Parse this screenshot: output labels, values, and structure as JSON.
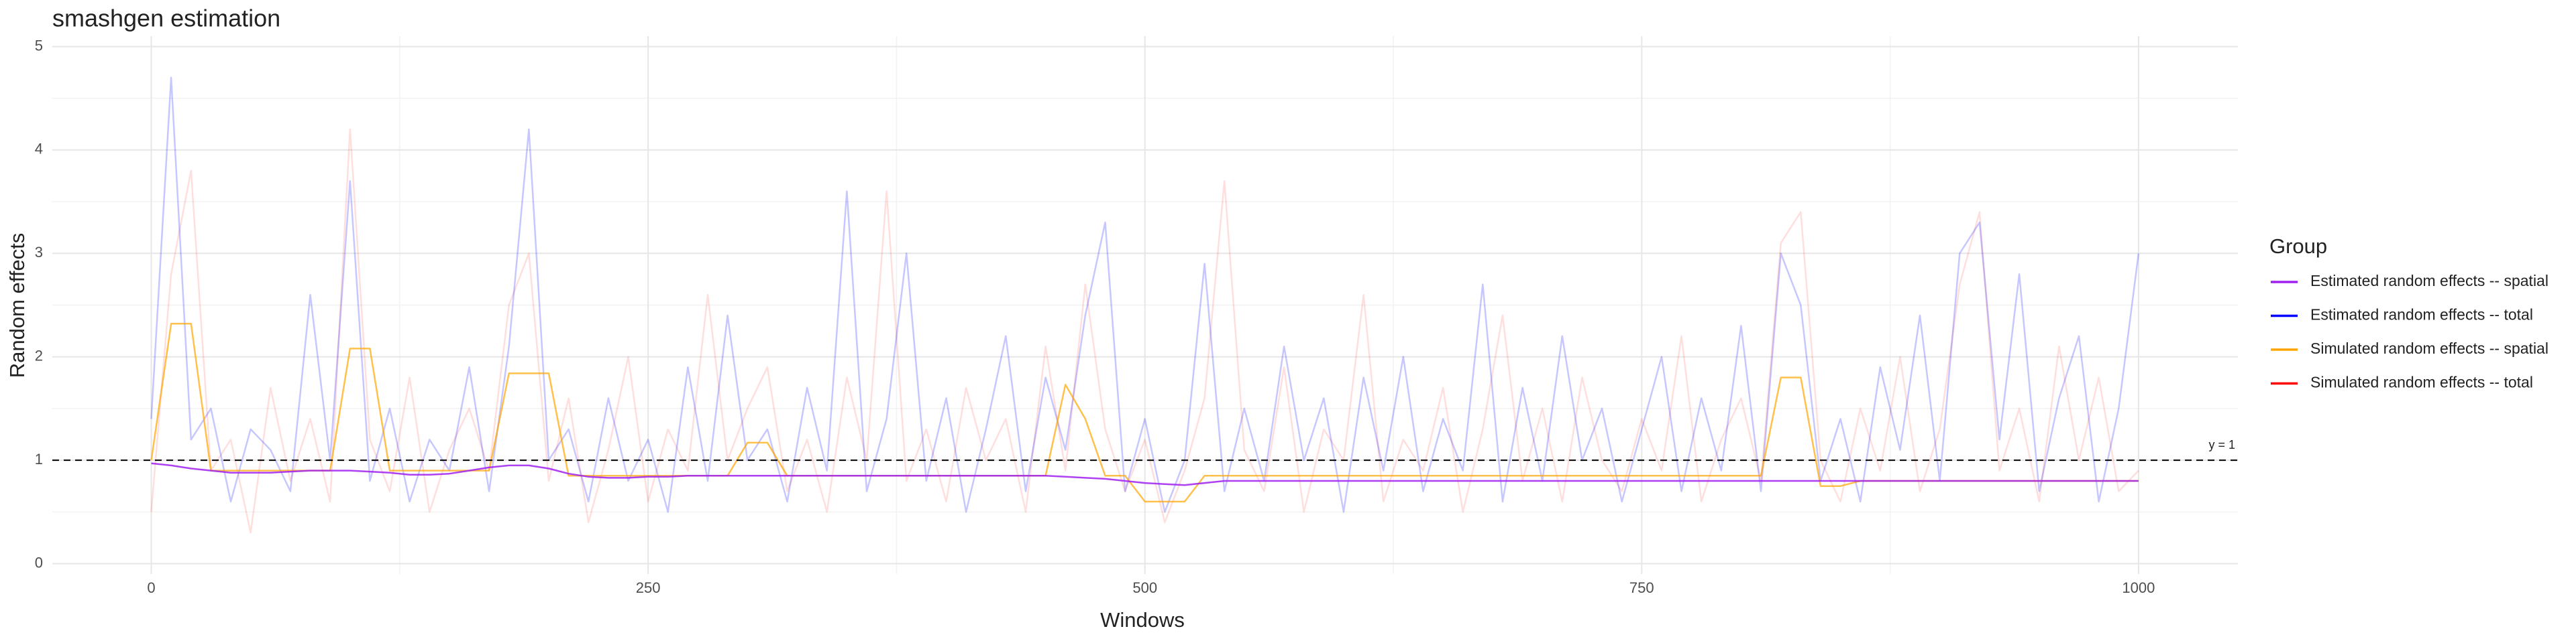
{
  "chart_data": {
    "type": "line",
    "title": "smashgen estimation",
    "x_label": "Windows",
    "y_label": "Random effects",
    "legend_title": "Group",
    "legend_position": "right",
    "grid": true,
    "xlim": [
      -49.8,
      1050
    ],
    "ylim": [
      -0.1,
      5.1
    ],
    "xticks": [
      0,
      250,
      500,
      750,
      1000
    ],
    "yticks": [
      0,
      1,
      2,
      3,
      4,
      5
    ],
    "hline": {
      "value": 1,
      "label": "y = 1"
    },
    "x": [
      0,
      10,
      20,
      30,
      40,
      50,
      60,
      70,
      80,
      90,
      100,
      110,
      120,
      130,
      140,
      150,
      160,
      170,
      180,
      190,
      200,
      210,
      220,
      230,
      240,
      250,
      260,
      270,
      280,
      290,
      300,
      310,
      320,
      330,
      340,
      350,
      360,
      370,
      380,
      390,
      400,
      410,
      420,
      430,
      440,
      450,
      460,
      470,
      480,
      490,
      500,
      510,
      520,
      530,
      540,
      550,
      560,
      570,
      580,
      590,
      600,
      610,
      620,
      630,
      640,
      650,
      660,
      670,
      680,
      690,
      700,
      710,
      720,
      730,
      740,
      750,
      760,
      770,
      780,
      790,
      800,
      810,
      820,
      830,
      840,
      850,
      860,
      870,
      880,
      890,
      900,
      910,
      920,
      930,
      940,
      950,
      960,
      970,
      980,
      990,
      1000
    ],
    "series": [
      {
        "name": "Simulated random effects -- total",
        "color": "#ff0000",
        "opacity": 0.13,
        "values": [
          0.5,
          2.8,
          3.8,
          0.9,
          1.2,
          0.3,
          1.7,
          0.8,
          1.4,
          0.6,
          4.2,
          1.2,
          0.7,
          1.8,
          0.5,
          1.1,
          1.5,
          0.9,
          2.5,
          3.0,
          0.8,
          1.6,
          0.4,
          1.1,
          2.0,
          0.6,
          1.3,
          0.9,
          2.6,
          1.0,
          1.5,
          1.9,
          0.7,
          1.2,
          0.5,
          1.8,
          1.0,
          3.6,
          0.8,
          1.3,
          0.6,
          1.7,
          1.0,
          1.4,
          0.5,
          2.1,
          0.9,
          2.7,
          1.3,
          0.7,
          1.2,
          0.4,
          0.9,
          1.6,
          3.7,
          1.1,
          0.7,
          1.9,
          0.5,
          1.3,
          1.0,
          2.6,
          0.6,
          1.2,
          0.9,
          1.7,
          0.5,
          1.3,
          2.4,
          0.8,
          1.5,
          0.6,
          1.8,
          1.0,
          0.7,
          1.4,
          0.9,
          2.2,
          0.6,
          1.2,
          1.6,
          0.8,
          3.1,
          3.4,
          1.0,
          0.6,
          1.5,
          0.9,
          2.0,
          0.7,
          1.3,
          2.7,
          3.4,
          0.9,
          1.5,
          0.6,
          2.1,
          1.0,
          1.8,
          0.7,
          0.9
        ]
      },
      {
        "name": "Estimated random effects -- total",
        "color": "#0000ff",
        "opacity": 0.22,
        "values": [
          1.4,
          4.7,
          1.2,
          1.5,
          0.6,
          1.3,
          1.1,
          0.7,
          2.6,
          1.0,
          3.7,
          0.8,
          1.5,
          0.6,
          1.2,
          0.9,
          1.9,
          0.7,
          2.1,
          4.2,
          1.0,
          1.3,
          0.6,
          1.6,
          0.8,
          1.2,
          0.5,
          1.9,
          0.8,
          2.4,
          1.0,
          1.3,
          0.6,
          1.7,
          0.9,
          3.6,
          0.7,
          1.4,
          3.0,
          0.8,
          1.6,
          0.5,
          1.3,
          2.2,
          0.7,
          1.8,
          1.1,
          2.4,
          3.3,
          0.7,
          1.4,
          0.5,
          1.0,
          2.9,
          0.7,
          1.5,
          0.8,
          2.1,
          1.0,
          1.6,
          0.5,
          1.8,
          0.9,
          2.0,
          0.7,
          1.4,
          0.9,
          2.7,
          0.6,
          1.7,
          0.8,
          2.2,
          1.0,
          1.5,
          0.6,
          1.3,
          2.0,
          0.7,
          1.6,
          0.9,
          2.3,
          0.7,
          3.0,
          2.5,
          0.8,
          1.4,
          0.6,
          1.9,
          1.1,
          2.4,
          0.8,
          3.0,
          3.3,
          1.2,
          2.8,
          0.7,
          1.6,
          2.2,
          0.6,
          1.5,
          3.0
        ]
      },
      {
        "name": "Simulated random effects -- spatial",
        "color": "#ffa500",
        "opacity": 0.7,
        "values": [
          1.0,
          2.32,
          2.32,
          0.9,
          0.9,
          0.9,
          0.9,
          0.9,
          0.9,
          0.9,
          2.08,
          2.08,
          0.9,
          0.9,
          0.9,
          0.9,
          0.9,
          0.9,
          1.84,
          1.84,
          1.84,
          0.85,
          0.85,
          0.85,
          0.85,
          0.85,
          0.85,
          0.85,
          0.85,
          0.85,
          1.17,
          1.17,
          0.85,
          0.85,
          0.85,
          0.85,
          0.85,
          0.85,
          0.85,
          0.85,
          0.85,
          0.85,
          0.85,
          0.85,
          0.85,
          0.85,
          1.73,
          1.4,
          0.85,
          0.85,
          0.6,
          0.6,
          0.6,
          0.85,
          0.85,
          0.85,
          0.85,
          0.85,
          0.85,
          0.85,
          0.85,
          0.85,
          0.85,
          0.85,
          0.85,
          0.85,
          0.85,
          0.85,
          0.85,
          0.85,
          0.85,
          0.85,
          0.85,
          0.85,
          0.85,
          0.85,
          0.85,
          0.85,
          0.85,
          0.85,
          0.85,
          0.85,
          1.8,
          1.8,
          0.75,
          0.75,
          0.8,
          0.8,
          0.8,
          0.8,
          0.8,
          0.8,
          0.8,
          0.8,
          0.8,
          0.8,
          0.8,
          0.8,
          0.8,
          0.8,
          0.8
        ]
      },
      {
        "name": "Estimated random effects -- spatial",
        "color": "#a020f0",
        "opacity": 0.85,
        "values": [
          0.97,
          0.95,
          0.92,
          0.9,
          0.88,
          0.88,
          0.88,
          0.89,
          0.9,
          0.9,
          0.9,
          0.89,
          0.88,
          0.86,
          0.86,
          0.87,
          0.9,
          0.93,
          0.95,
          0.95,
          0.92,
          0.87,
          0.84,
          0.83,
          0.83,
          0.84,
          0.84,
          0.85,
          0.85,
          0.85,
          0.85,
          0.85,
          0.85,
          0.85,
          0.85,
          0.85,
          0.85,
          0.85,
          0.85,
          0.85,
          0.85,
          0.85,
          0.85,
          0.85,
          0.85,
          0.85,
          0.84,
          0.83,
          0.82,
          0.8,
          0.78,
          0.77,
          0.76,
          0.78,
          0.8,
          0.8,
          0.8,
          0.8,
          0.8,
          0.8,
          0.8,
          0.8,
          0.8,
          0.8,
          0.8,
          0.8,
          0.8,
          0.8,
          0.8,
          0.8,
          0.8,
          0.8,
          0.8,
          0.8,
          0.8,
          0.8,
          0.8,
          0.8,
          0.8,
          0.8,
          0.8,
          0.8,
          0.8,
          0.8,
          0.8,
          0.8,
          0.8,
          0.8,
          0.8,
          0.8,
          0.8,
          0.8,
          0.8,
          0.8,
          0.8,
          0.8,
          0.8,
          0.8,
          0.8,
          0.8,
          0.8
        ]
      }
    ],
    "legend_order": [
      3,
      1,
      2,
      0
    ]
  }
}
